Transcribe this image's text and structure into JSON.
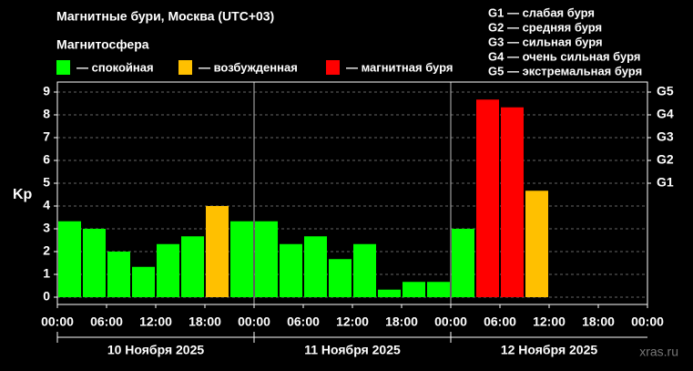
{
  "chart_data": {
    "type": "bar",
    "title": "Магнитные бури, Москва (UTC+03)",
    "legend_title": "Магнитосфера",
    "legend": [
      {
        "label": "— спокойная",
        "color": "#00ff00"
      },
      {
        "label": "— возбужденная",
        "color": "#ffc000"
      },
      {
        "label": "— магнитная буря",
        "color": "#ff0000"
      }
    ],
    "g_legend": [
      "G1 — слабая буря",
      "G2 — средняя буря",
      "G3 — сильная буря",
      "G4 — очень сильная буря",
      "G5 — экстремальная буря"
    ],
    "y_label": "Kp",
    "x_tick_labels": [
      "00:00",
      "06:00",
      "12:00",
      "18:00",
      "00:00",
      "06:00",
      "12:00",
      "18:00",
      "00:00",
      "06:00",
      "12:00",
      "18:00",
      "00:00"
    ],
    "days": [
      "10 Ноября 2025",
      "11 Ноября 2025",
      "12 Ноября 2025"
    ],
    "values": [
      3.33,
      3.0,
      2.0,
      1.33,
      2.33,
      2.67,
      4.0,
      3.33,
      3.33,
      2.33,
      2.67,
      1.67,
      2.33,
      0.33,
      0.67,
      0.67,
      3.0,
      8.67,
      8.33,
      4.67
    ],
    "colors": [
      "#00ff00",
      "#00ff00",
      "#00ff00",
      "#00ff00",
      "#00ff00",
      "#00ff00",
      "#ffc000",
      "#00ff00",
      "#00ff00",
      "#00ff00",
      "#00ff00",
      "#00ff00",
      "#00ff00",
      "#00ff00",
      "#00ff00",
      "#00ff00",
      "#00ff00",
      "#ff0000",
      "#ff0000",
      "#ffc000"
    ],
    "ylim": [
      -0.32,
      9.44
    ],
    "yticks": [
      0,
      1,
      2,
      3,
      4,
      5,
      6,
      7,
      8,
      9
    ],
    "y2lim": [
      -0.32,
      9.44
    ],
    "y2ticks": [
      {
        "value": 5,
        "label": "G1"
      },
      {
        "value": 6,
        "label": "G2"
      },
      {
        "value": 7,
        "label": "G3"
      },
      {
        "value": 8,
        "label": "G4"
      },
      {
        "value": 9,
        "label": "G5"
      }
    ],
    "grid": true,
    "watermark": "xras.ru"
  }
}
